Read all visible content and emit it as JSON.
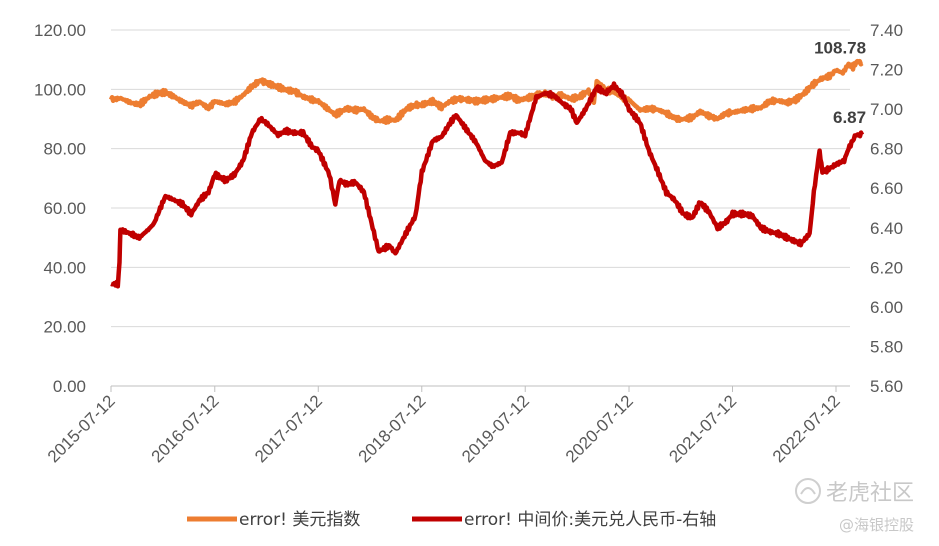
{
  "chart_data": {
    "type": "line",
    "x_tick_labels": [
      "2015-07-12",
      "2016-07-12",
      "2017-07-12",
      "2018-07-12",
      "2019-07-12",
      "2020-07-12",
      "2021-07-12",
      "2022-07-12"
    ],
    "x_range": [
      "2015-07-12",
      "2022-10-12"
    ],
    "y_left": {
      "ylim": [
        0,
        120
      ],
      "ticks": [
        "0.00",
        "20.00",
        "40.00",
        "60.00",
        "80.00",
        "100.00",
        "120.00"
      ]
    },
    "y_right": {
      "ylim": [
        5.6,
        7.4
      ],
      "ticks": [
        "5.60",
        "5.80",
        "6.00",
        "6.20",
        "6.40",
        "6.60",
        "6.80",
        "7.00",
        "7.20",
        "7.40"
      ]
    },
    "grid": "horizontal",
    "legend_position": "bottom",
    "series": [
      {
        "name": "error! 美元指数",
        "axis": "left",
        "color": "#ED7D31",
        "end_label": "108.78",
        "points": [
          [
            "2015-07-12",
            96.5
          ],
          [
            "2015-08-15",
            97.0
          ],
          [
            "2015-09-20",
            95.5
          ],
          [
            "2015-10-20",
            94.8
          ],
          [
            "2015-11-25",
            97.5
          ],
          [
            "2015-12-20",
            98.5
          ],
          [
            "2016-01-20",
            99.0
          ],
          [
            "2016-02-20",
            97.5
          ],
          [
            "2016-03-20",
            95.8
          ],
          [
            "2016-04-20",
            94.5
          ],
          [
            "2016-05-20",
            95.8
          ],
          [
            "2016-06-20",
            93.6
          ],
          [
            "2016-07-12",
            96.0
          ],
          [
            "2016-08-20",
            95.0
          ],
          [
            "2016-09-20",
            95.8
          ],
          [
            "2016-10-20",
            98.0
          ],
          [
            "2016-11-20",
            101.0
          ],
          [
            "2016-12-20",
            103.0
          ],
          [
            "2017-01-15",
            102.0
          ],
          [
            "2017-02-20",
            100.8
          ],
          [
            "2017-03-20",
            99.8
          ],
          [
            "2017-04-20",
            99.3
          ],
          [
            "2017-05-20",
            97.5
          ],
          [
            "2017-06-20",
            96.5
          ],
          [
            "2017-07-12",
            96.0
          ],
          [
            "2017-08-20",
            93.0
          ],
          [
            "2017-09-10",
            91.5
          ],
          [
            "2017-10-20",
            93.5
          ],
          [
            "2017-11-20",
            93.0
          ],
          [
            "2017-12-20",
            93.3
          ],
          [
            "2018-01-20",
            90.5
          ],
          [
            "2018-02-15",
            89.3
          ],
          [
            "2018-03-20",
            89.8
          ],
          [
            "2018-04-10",
            89.5
          ],
          [
            "2018-05-20",
            93.5
          ],
          [
            "2018-06-20",
            94.7
          ],
          [
            "2018-07-12",
            94.8
          ],
          [
            "2018-08-20",
            96.0
          ],
          [
            "2018-09-20",
            94.0
          ],
          [
            "2018-10-20",
            96.0
          ],
          [
            "2018-11-20",
            96.8
          ],
          [
            "2018-12-20",
            96.5
          ],
          [
            "2019-01-20",
            96.0
          ],
          [
            "2019-03-20",
            96.8
          ],
          [
            "2019-05-20",
            97.8
          ],
          [
            "2019-06-20",
            96.3
          ],
          [
            "2019-07-12",
            96.8
          ],
          [
            "2019-08-20",
            98.0
          ],
          [
            "2019-09-20",
            98.6
          ],
          [
            "2019-10-20",
            97.5
          ],
          [
            "2019-11-20",
            98.0
          ],
          [
            "2019-12-20",
            96.8
          ],
          [
            "2020-01-20",
            97.5
          ],
          [
            "2020-02-20",
            99.5
          ],
          [
            "2020-03-10",
            95.5
          ],
          [
            "2020-03-20",
            102.8
          ],
          [
            "2020-04-20",
            100.0
          ],
          [
            "2020-05-20",
            99.0
          ],
          [
            "2020-06-20",
            97.0
          ],
          [
            "2020-07-12",
            96.5
          ],
          [
            "2020-08-20",
            93.0
          ],
          [
            "2020-09-20",
            93.5
          ],
          [
            "2020-10-20",
            93.2
          ],
          [
            "2020-11-20",
            92.0
          ],
          [
            "2020-12-20",
            90.3
          ],
          [
            "2021-01-10",
            89.8
          ],
          [
            "2021-02-20",
            90.5
          ],
          [
            "2021-03-20",
            92.5
          ],
          [
            "2021-04-20",
            91.0
          ],
          [
            "2021-05-20",
            90.0
          ],
          [
            "2021-06-20",
            92.0
          ],
          [
            "2021-07-12",
            92.2
          ],
          [
            "2021-08-20",
            93.0
          ],
          [
            "2021-09-20",
            93.5
          ],
          [
            "2021-10-20",
            93.8
          ],
          [
            "2021-11-20",
            96.0
          ],
          [
            "2021-12-20",
            96.2
          ],
          [
            "2022-01-20",
            95.5
          ],
          [
            "2022-02-20",
            96.5
          ],
          [
            "2022-03-20",
            98.5
          ],
          [
            "2022-04-20",
            101.5
          ],
          [
            "2022-05-20",
            103.5
          ],
          [
            "2022-06-20",
            104.5
          ],
          [
            "2022-07-12",
            106.5
          ],
          [
            "2022-08-05",
            105.5
          ],
          [
            "2022-08-25",
            108.5
          ],
          [
            "2022-09-10",
            107.5
          ],
          [
            "2022-09-25",
            109.5
          ],
          [
            "2022-10-12",
            108.78
          ]
        ]
      },
      {
        "name": "error! 中间价:美元兑人民币-右轴",
        "axis": "right",
        "color": "#C00000",
        "end_label": "6.87",
        "points": [
          [
            "2015-07-12",
            6.116
          ],
          [
            "2015-08-05",
            6.116
          ],
          [
            "2015-08-11",
            6.23
          ],
          [
            "2015-08-14",
            6.39
          ],
          [
            "2015-09-20",
            6.37
          ],
          [
            "2015-10-20",
            6.35
          ],
          [
            "2015-11-20",
            6.39
          ],
          [
            "2015-12-10",
            6.42
          ],
          [
            "2016-01-05",
            6.51
          ],
          [
            "2016-01-20",
            6.56
          ],
          [
            "2016-02-20",
            6.54
          ],
          [
            "2016-03-20",
            6.52
          ],
          [
            "2016-04-20",
            6.47
          ],
          [
            "2016-05-20",
            6.54
          ],
          [
            "2016-06-20",
            6.58
          ],
          [
            "2016-07-12",
            6.67
          ],
          [
            "2016-08-20",
            6.64
          ],
          [
            "2016-09-20",
            6.67
          ],
          [
            "2016-10-20",
            6.74
          ],
          [
            "2016-11-20",
            6.88
          ],
          [
            "2016-12-20",
            6.95
          ],
          [
            "2017-01-10",
            6.93
          ],
          [
            "2017-02-20",
            6.87
          ],
          [
            "2017-03-20",
            6.89
          ],
          [
            "2017-04-20",
            6.88
          ],
          [
            "2017-05-20",
            6.88
          ],
          [
            "2017-06-20",
            6.81
          ],
          [
            "2017-07-12",
            6.79
          ],
          [
            "2017-08-20",
            6.67
          ],
          [
            "2017-09-10",
            6.52
          ],
          [
            "2017-09-25",
            6.64
          ],
          [
            "2017-10-20",
            6.62
          ],
          [
            "2017-11-20",
            6.63
          ],
          [
            "2017-12-20",
            6.58
          ],
          [
            "2018-01-20",
            6.4
          ],
          [
            "2018-02-10",
            6.28
          ],
          [
            "2018-03-20",
            6.31
          ],
          [
            "2018-04-10",
            6.27
          ],
          [
            "2018-05-20",
            6.38
          ],
          [
            "2018-06-20",
            6.46
          ],
          [
            "2018-07-12",
            6.68
          ],
          [
            "2018-08-20",
            6.84
          ],
          [
            "2018-09-20",
            6.86
          ],
          [
            "2018-10-20",
            6.93
          ],
          [
            "2018-11-10",
            6.97
          ],
          [
            "2018-12-20",
            6.89
          ],
          [
            "2019-01-20",
            6.83
          ],
          [
            "2019-02-20",
            6.74
          ],
          [
            "2019-03-20",
            6.71
          ],
          [
            "2019-04-20",
            6.73
          ],
          [
            "2019-05-20",
            6.88
          ],
          [
            "2019-06-20",
            6.88
          ],
          [
            "2019-07-12",
            6.87
          ],
          [
            "2019-08-20",
            7.06
          ],
          [
            "2019-09-20",
            7.08
          ],
          [
            "2019-10-20",
            7.07
          ],
          [
            "2019-11-20",
            7.03
          ],
          [
            "2019-12-20",
            7.0
          ],
          [
            "2020-01-10",
            6.93
          ],
          [
            "2020-02-10",
            7.0
          ],
          [
            "2020-03-20",
            7.11
          ],
          [
            "2020-04-20",
            7.08
          ],
          [
            "2020-05-20",
            7.12
          ],
          [
            "2020-06-20",
            7.07
          ],
          [
            "2020-07-12",
            7.0
          ],
          [
            "2020-08-20",
            6.93
          ],
          [
            "2020-09-20",
            6.79
          ],
          [
            "2020-10-20",
            6.69
          ],
          [
            "2020-11-20",
            6.58
          ],
          [
            "2020-12-20",
            6.54
          ],
          [
            "2021-01-20",
            6.47
          ],
          [
            "2021-02-20",
            6.45
          ],
          [
            "2021-03-20",
            6.53
          ],
          [
            "2021-04-20",
            6.48
          ],
          [
            "2021-05-20",
            6.4
          ],
          [
            "2021-06-20",
            6.43
          ],
          [
            "2021-07-12",
            6.47
          ],
          [
            "2021-08-20",
            6.47
          ],
          [
            "2021-09-20",
            6.46
          ],
          [
            "2021-10-20",
            6.4
          ],
          [
            "2021-11-20",
            6.38
          ],
          [
            "2021-12-20",
            6.37
          ],
          [
            "2022-01-20",
            6.35
          ],
          [
            "2022-02-20",
            6.33
          ],
          [
            "2022-03-10",
            6.32
          ],
          [
            "2022-04-10",
            6.37
          ],
          [
            "2022-04-25",
            6.58
          ],
          [
            "2022-05-15",
            6.79
          ],
          [
            "2022-05-25",
            6.68
          ],
          [
            "2022-06-20",
            6.7
          ],
          [
            "2022-07-12",
            6.72
          ],
          [
            "2022-08-10",
            6.74
          ],
          [
            "2022-08-25",
            6.8
          ],
          [
            "2022-09-20",
            6.87
          ],
          [
            "2022-10-12",
            6.87
          ]
        ]
      }
    ]
  },
  "watermark": {
    "main": "老虎社区",
    "sub": "@海银控股"
  }
}
